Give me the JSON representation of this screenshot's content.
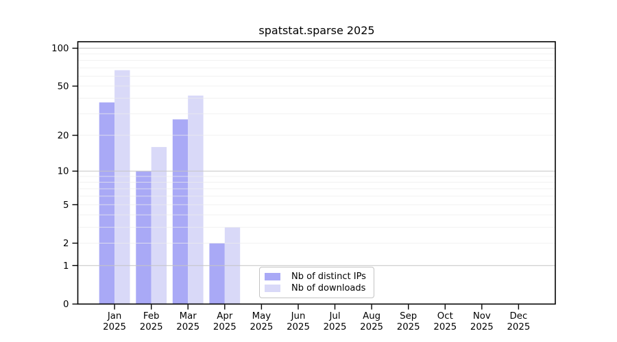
{
  "title": "spatstat.sparse 2025",
  "chart_data": {
    "type": "bar",
    "title": "spatstat.sparse 2025",
    "categories": [
      {
        "month": "Jan",
        "year": "2025"
      },
      {
        "month": "Feb",
        "year": "2025"
      },
      {
        "month": "Mar",
        "year": "2025"
      },
      {
        "month": "Apr",
        "year": "2025"
      },
      {
        "month": "May",
        "year": "2025"
      },
      {
        "month": "Jun",
        "year": "2025"
      },
      {
        "month": "Jul",
        "year": "2025"
      },
      {
        "month": "Aug",
        "year": "2025"
      },
      {
        "month": "Sep",
        "year": "2025"
      },
      {
        "month": "Oct",
        "year": "2025"
      },
      {
        "month": "Nov",
        "year": "2025"
      },
      {
        "month": "Dec",
        "year": "2025"
      }
    ],
    "series": [
      {
        "name": "Nb of distinct IPs",
        "color": "#a9a9f6",
        "values": [
          37,
          10,
          27,
          2,
          null,
          null,
          null,
          null,
          null,
          null,
          null,
          null
        ]
      },
      {
        "name": "Nb of downloads",
        "color": "#d9d9f8",
        "values": [
          67,
          16,
          42,
          3,
          null,
          null,
          null,
          null,
          null,
          null,
          null,
          null
        ]
      }
    ],
    "y_ticks": [
      0,
      1,
      2,
      5,
      10,
      20,
      50,
      100
    ],
    "y_scale": "log10(1+y)",
    "ylim": [
      0,
      100
    ],
    "grid": {
      "major_at": [
        1,
        10,
        100
      ],
      "minor_at": [
        2,
        3,
        4,
        5,
        6,
        7,
        8,
        9,
        20,
        30,
        40,
        50,
        60,
        70,
        80,
        90
      ],
      "major_color": "#c4c4c4",
      "minor_color": "#ececec"
    },
    "legend_position": "bottom-center"
  },
  "legend": {
    "items": [
      {
        "label": "Nb of distinct IPs",
        "color": "#a9a9f6"
      },
      {
        "label": "Nb of downloads",
        "color": "#d9d9f8"
      }
    ]
  },
  "axis": {
    "spine_color": "#000000",
    "tick_label_color": "#000000"
  }
}
